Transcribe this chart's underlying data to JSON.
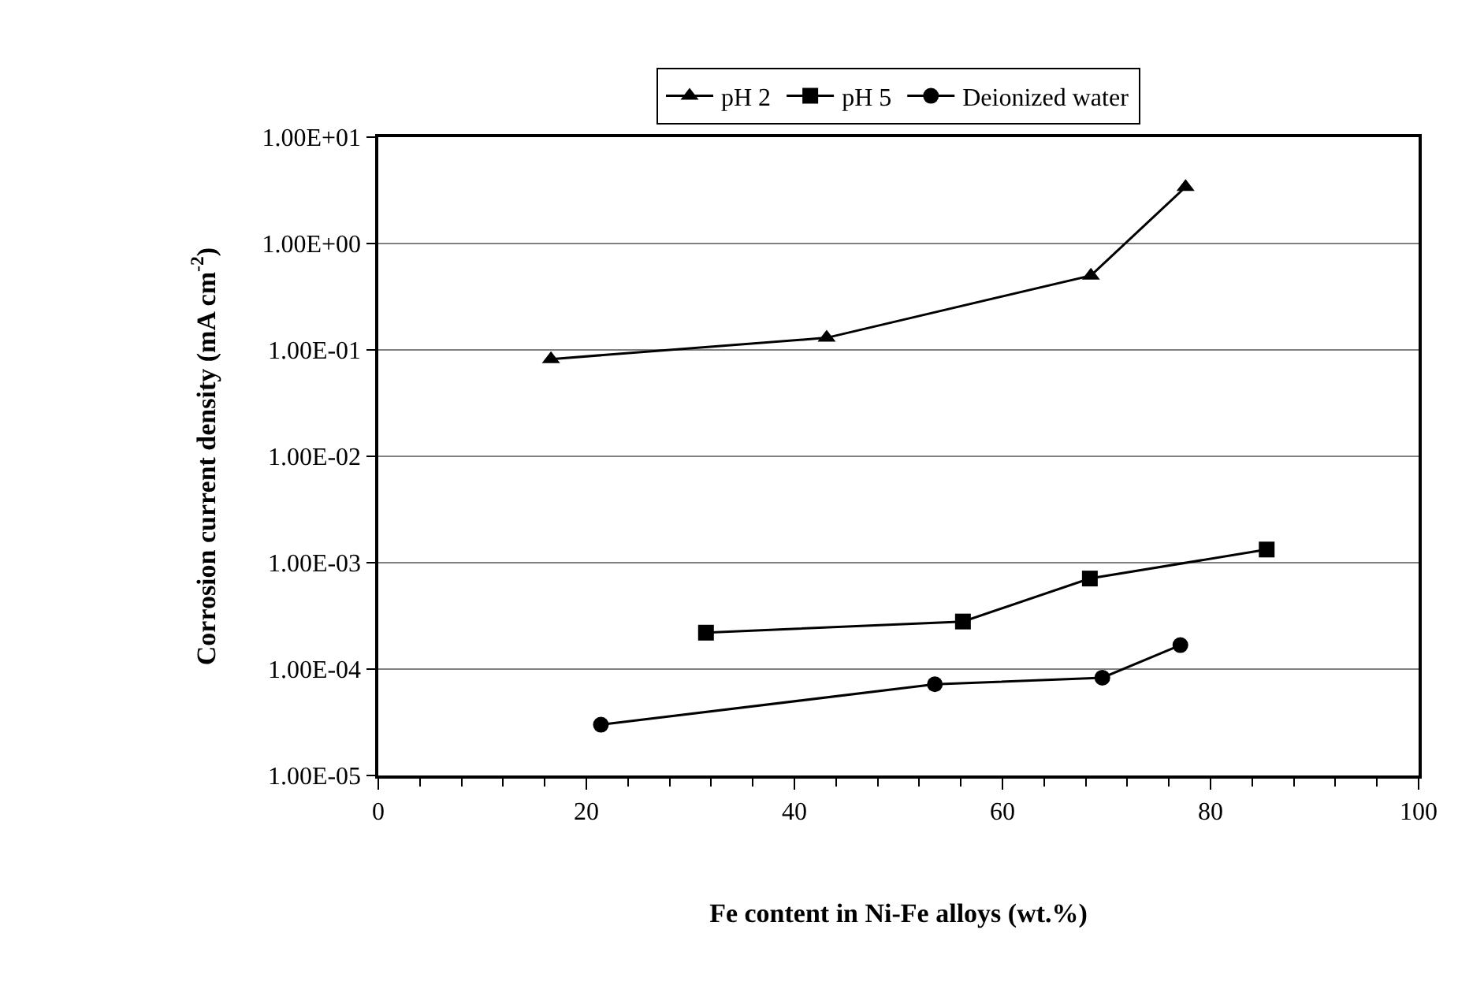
{
  "chart_data": {
    "type": "line",
    "xlabel": "Fe content in Ni-Fe alloys (wt.%)",
    "ylabel": "Corrosion current density (mA cm$^{-2}$)",
    "log": "y",
    "grid": "y",
    "legend": "top",
    "line_style": "solid",
    "xlim": [
      0,
      100
    ],
    "xticks": [
      0,
      20,
      40,
      60,
      80,
      100
    ],
    "ylim": [
      1e-05,
      10
    ],
    "yticks": [
      {
        "value": 1e-05,
        "label": "1.00E-05"
      },
      {
        "value": 0.0001,
        "label": "1.00E-04"
      },
      {
        "value": 0.001,
        "label": "1.00E-03"
      },
      {
        "value": 0.01,
        "label": "1.00E-02"
      },
      {
        "value": 0.1,
        "label": "1.00E-01"
      },
      {
        "value": 1,
        "label": "1.00E+00"
      },
      {
        "value": 10,
        "label": "1.00E+01"
      }
    ],
    "series": [
      {
        "name": "pH 2",
        "color": "#000000",
        "marker": "triangle",
        "x": [
          16.6,
          43.1,
          68.5,
          77.6
        ],
        "values": [
          0.082,
          0.13,
          0.5,
          3.4
        ]
      },
      {
        "name": "pH 5",
        "color": "#000000",
        "marker": "square",
        "x": [
          31.5,
          56.2,
          68.4,
          85.4
        ],
        "values": [
          0.00022,
          0.00028,
          0.00071,
          0.00133
        ]
      },
      {
        "name": "Deionized water",
        "color": "#000000",
        "marker": "circle",
        "x": [
          21.4,
          53.5,
          69.6,
          77.1
        ],
        "values": [
          3e-05,
          7.2e-05,
          8.3e-05,
          0.000168
        ]
      }
    ]
  }
}
